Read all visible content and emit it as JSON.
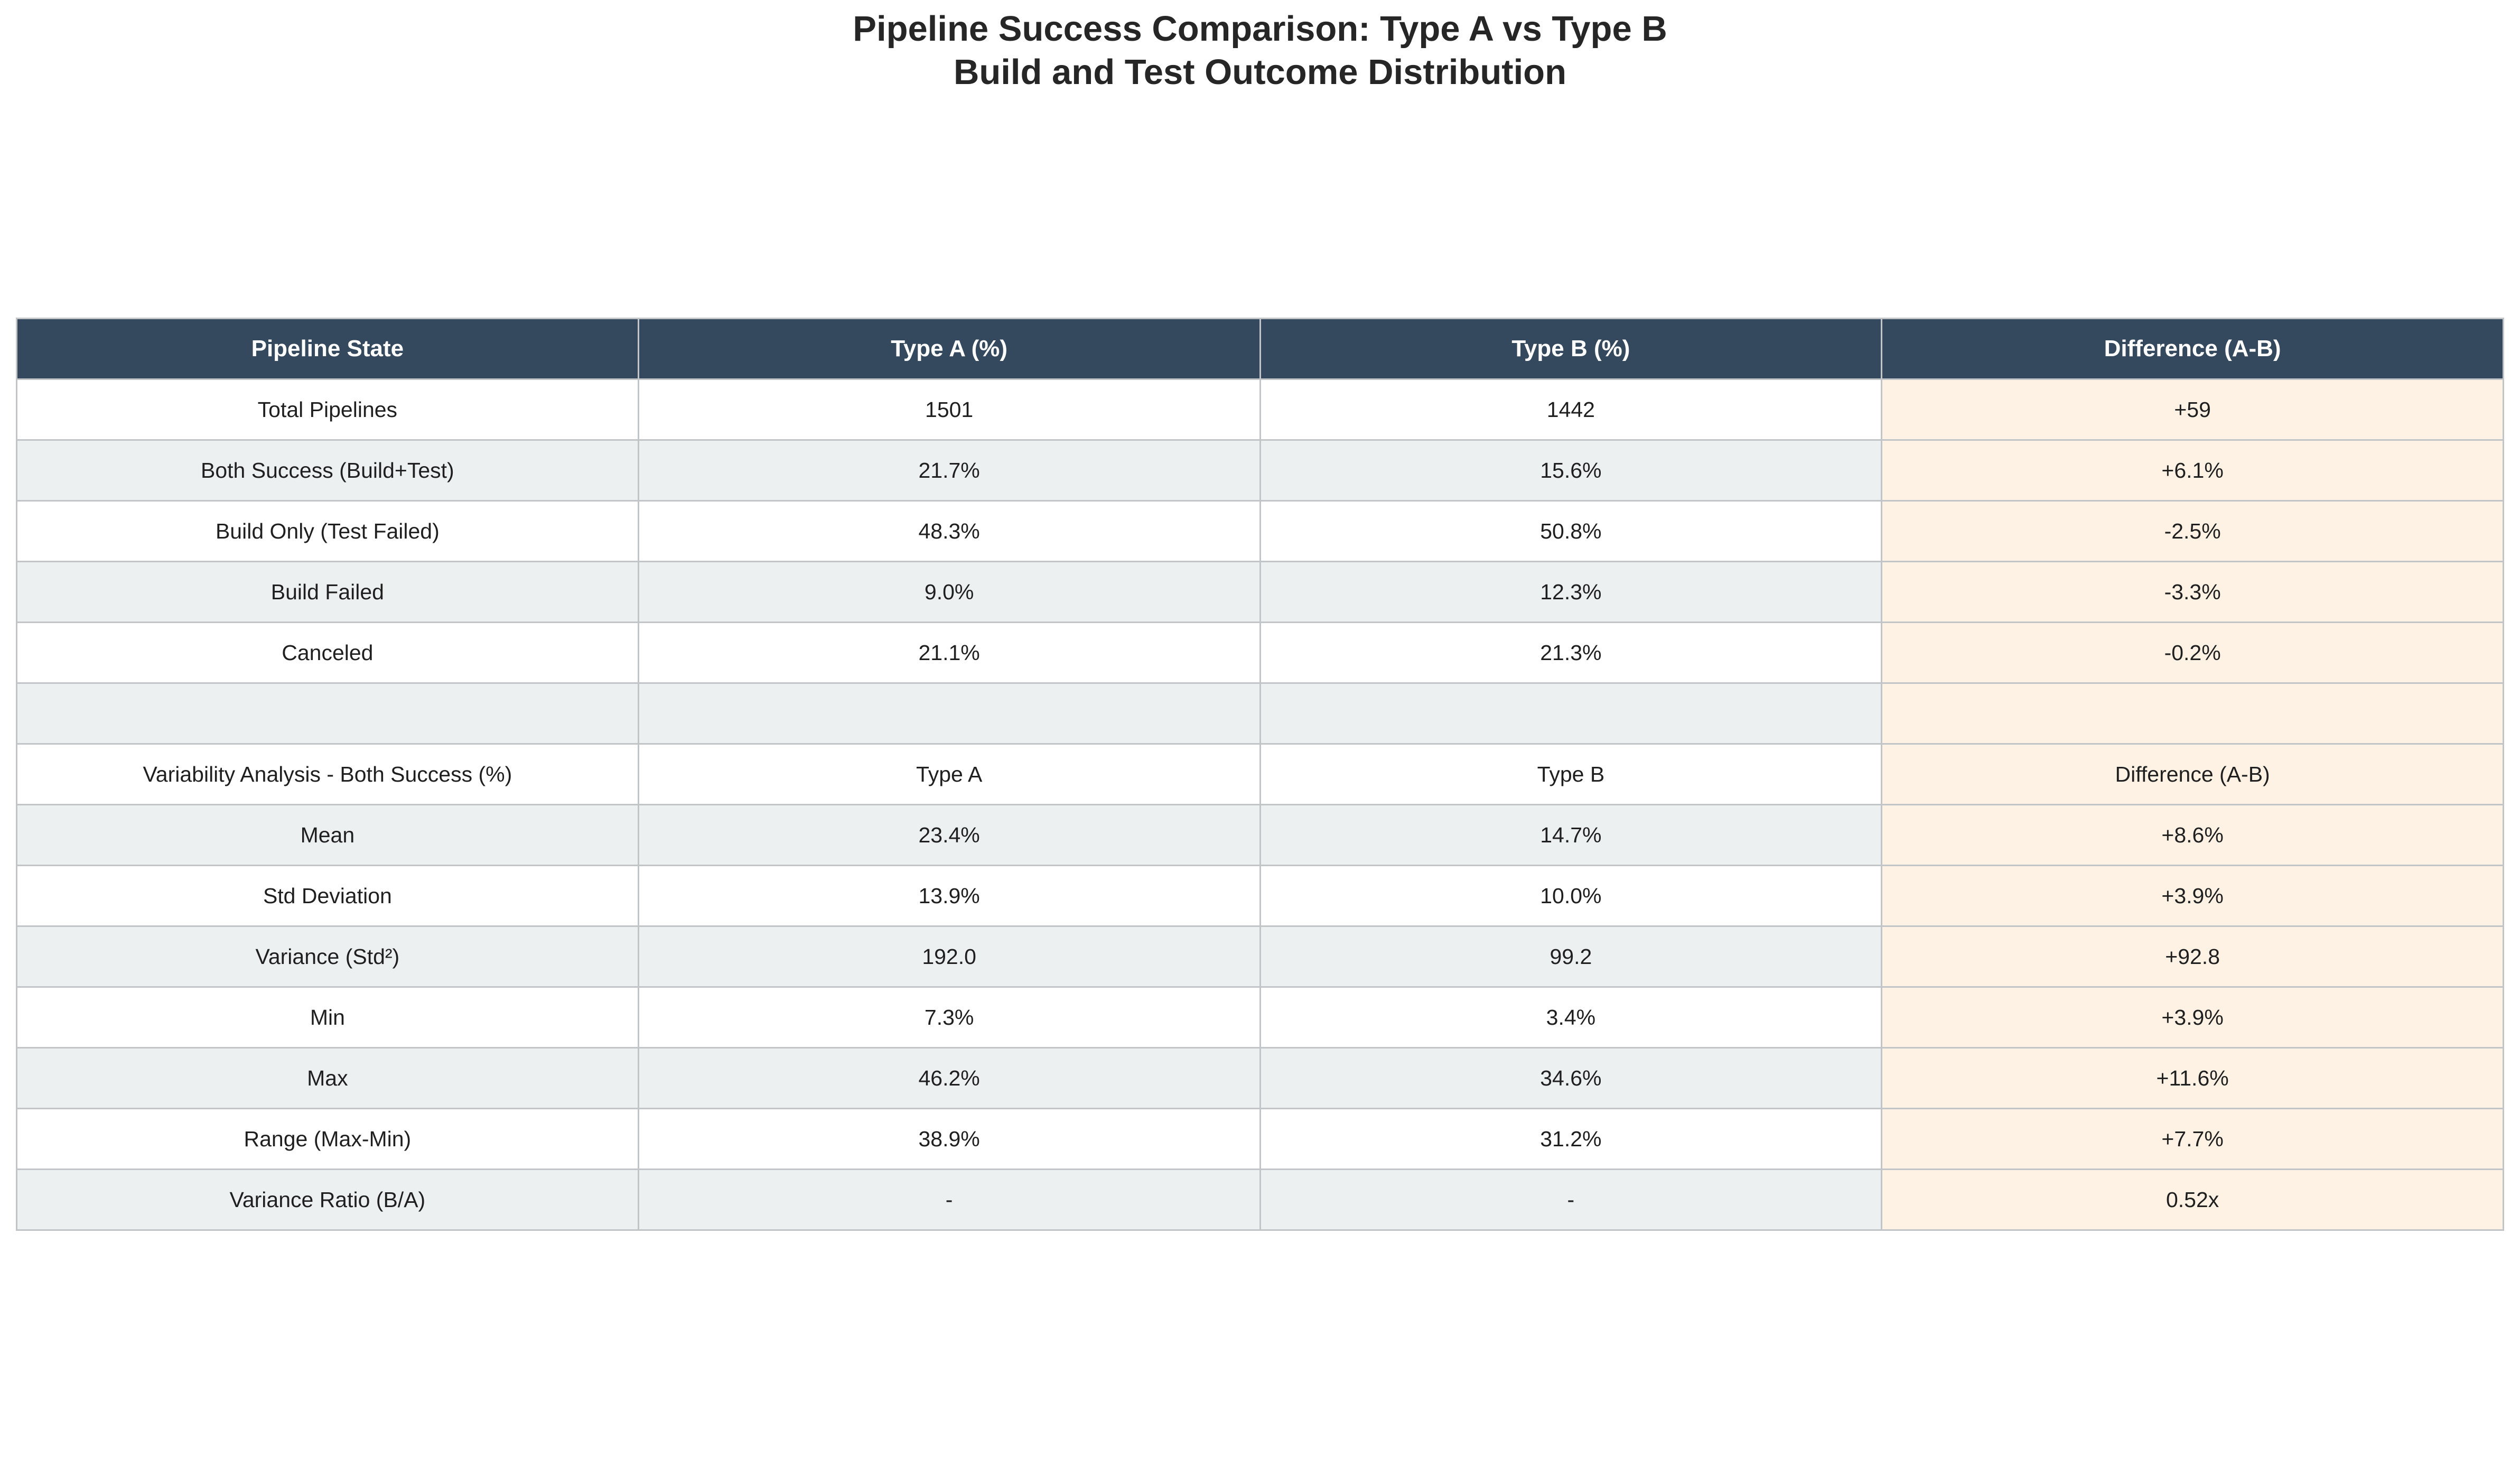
{
  "chart_data": {
    "type": "table",
    "title": "Pipeline Success Comparison: Type A vs Type B",
    "subtitle": "Build and Test Outcome Distribution",
    "columns": [
      "Pipeline State",
      "Type A (%)",
      "Type B (%)",
      "Difference (A-B)"
    ],
    "rows": [
      [
        "Total Pipelines",
        "1501",
        "1442",
        "+59"
      ],
      [
        "Both Success (Build+Test)",
        "21.7%",
        "15.6%",
        "+6.1%"
      ],
      [
        "Build Only (Test Failed)",
        "48.3%",
        "50.8%",
        "-2.5%"
      ],
      [
        "Build Failed",
        "9.0%",
        "12.3%",
        "-3.3%"
      ],
      [
        "Canceled",
        "21.1%",
        "21.3%",
        "-0.2%"
      ],
      [
        "",
        "",
        "",
        ""
      ],
      [
        "Variability Analysis - Both Success (%)",
        "Type A",
        "Type B",
        "Difference (A-B)"
      ],
      [
        "Mean",
        "23.4%",
        "14.7%",
        "+8.6%"
      ],
      [
        "Std Deviation",
        "13.9%",
        "10.0%",
        "+3.9%"
      ],
      [
        "Variance (Std²)",
        "192.0",
        "99.2",
        "+92.8"
      ],
      [
        "Min",
        "7.3%",
        "3.4%",
        "+3.9%"
      ],
      [
        "Max",
        "46.2%",
        "34.6%",
        "+11.6%"
      ],
      [
        "Range (Max-Min)",
        "38.9%",
        "31.2%",
        "+7.7%"
      ],
      [
        "Variance Ratio (B/A)",
        "-",
        "-",
        "0.52x"
      ]
    ],
    "colors": {
      "header_bg": "#34495e",
      "header_text": "#ffffff",
      "row_alt": "#ecf0f1",
      "row_plain": "#ffffff",
      "diff_column": "#fdf2e3",
      "border": "#c2c5c8"
    }
  }
}
